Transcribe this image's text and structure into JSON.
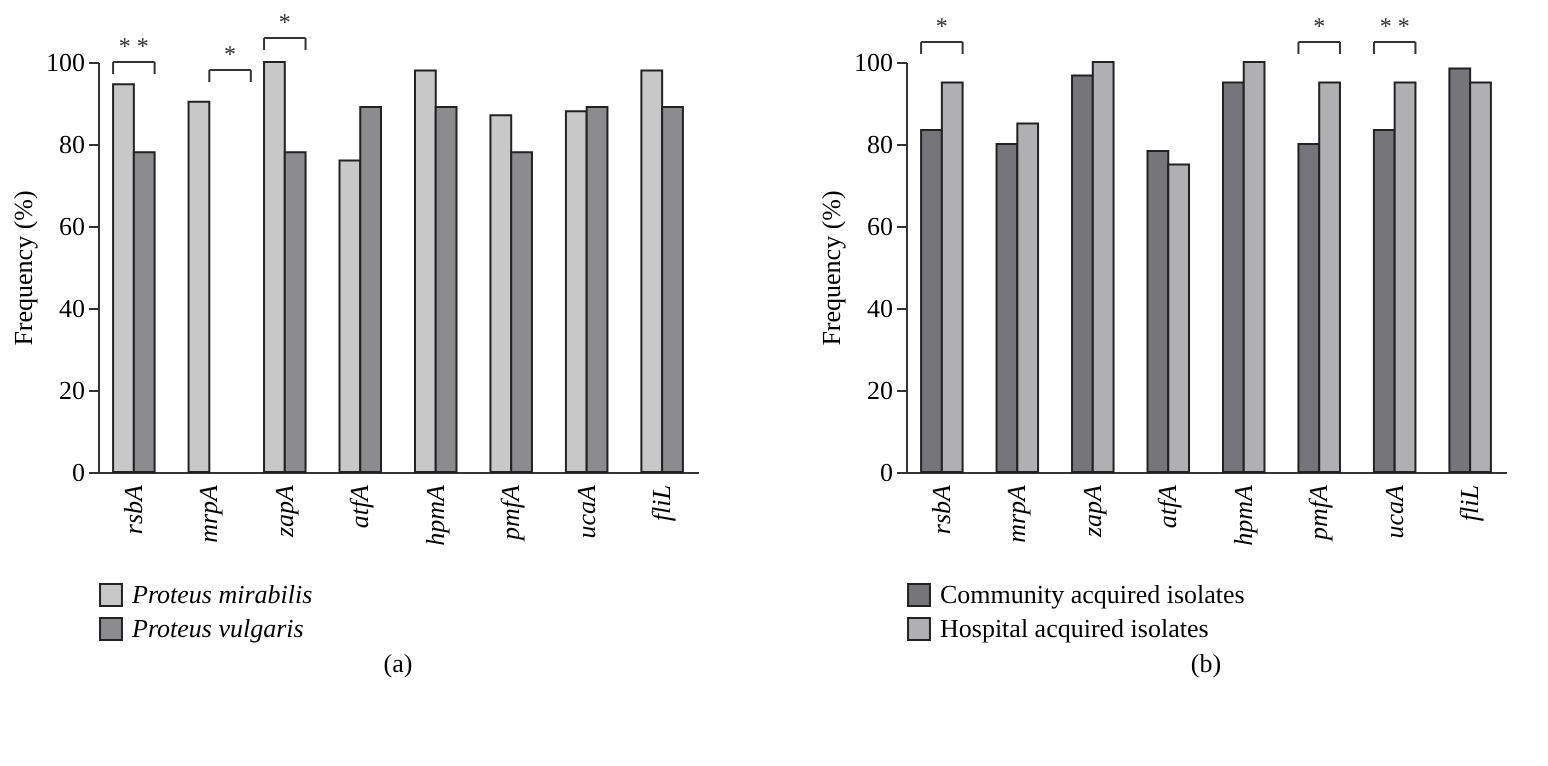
{
  "chart_data": [
    {
      "type": "bar",
      "title": "(a)",
      "ylabel": "Frequency (%)",
      "categories": [
        "rsbA",
        "mrpA",
        "zapA",
        "atfA",
        "hpmA",
        "pmfA",
        "ucaA",
        "fliL"
      ],
      "series": [
        {
          "name": "Proteus mirabilis",
          "color": "#c8c8c8",
          "values": [
            94.6,
            90.3,
            100,
            76,
            97.9,
            87,
            88,
            97.9
          ]
        },
        {
          "name": "Proteus vulgaris",
          "color": "#8c8c8e",
          "values": [
            78,
            null,
            78,
            89,
            89,
            78,
            89,
            89
          ]
        }
      ],
      "ylim": [
        0,
        100
      ],
      "yticks": [
        0,
        20,
        40,
        60,
        80,
        100
      ],
      "grid": false,
      "legend": "bottom",
      "annotations": [
        "* *",
        "*",
        "*"
      ]
    },
    {
      "type": "bar",
      "title": "(b)",
      "ylabel": "Frequency (%)",
      "categories": [
        "rsbA",
        "mrpA",
        "zapA",
        "atfA",
        "hpmA",
        "pmfA",
        "ucaA",
        "fliL"
      ],
      "series": [
        {
          "name": "Community acquired isolates",
          "color": "#76767a",
          "values": [
            83.4,
            80,
            96.7,
            78.3,
            95,
            80,
            83.4,
            98.4
          ]
        },
        {
          "name": "Hospital acquired isolates",
          "color": "#b0b0b2",
          "values": [
            95,
            85,
            100,
            75,
            100,
            95,
            95,
            95
          ]
        }
      ],
      "ylim": [
        0,
        100
      ],
      "yticks": [
        0,
        20,
        40,
        60,
        80,
        100
      ],
      "grid": false,
      "legend": "bottom",
      "annotations": [
        "*",
        "*",
        "* *"
      ]
    }
  ]
}
